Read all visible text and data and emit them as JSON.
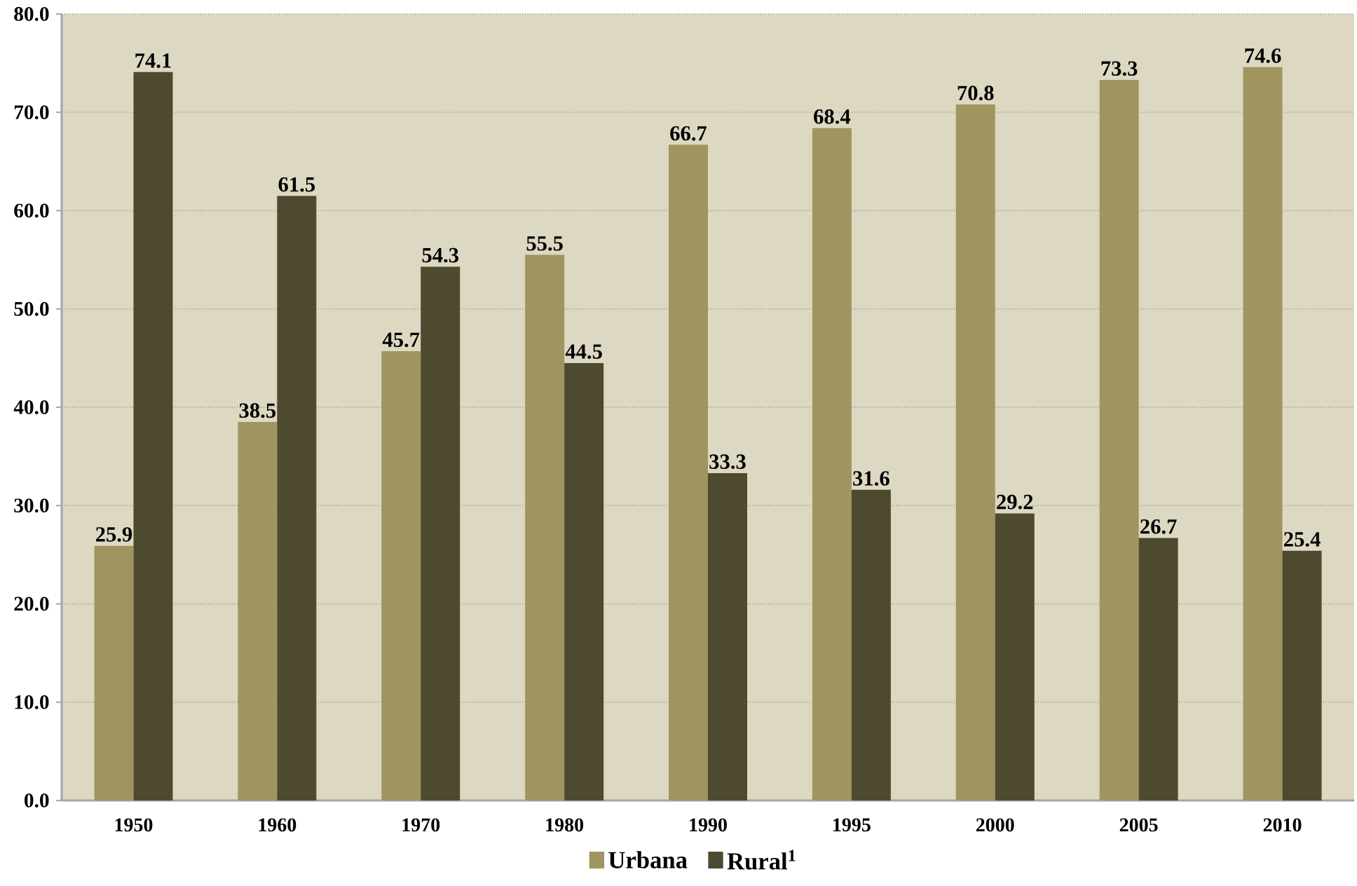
{
  "chart_data": {
    "type": "bar",
    "categories": [
      "1950",
      "1960",
      "1970",
      "1980",
      "1990",
      "1995",
      "2000",
      "2005",
      "2010"
    ],
    "series": [
      {
        "name": "Urbana",
        "color": "#a09560",
        "values": [
          25.9,
          38.5,
          45.7,
          55.5,
          66.7,
          68.4,
          70.8,
          73.3,
          74.6
        ]
      },
      {
        "name": "Rural$^{1}$",
        "color": "#4e4a30",
        "values": [
          74.1,
          61.5,
          54.3,
          44.5,
          33.3,
          31.6,
          29.2,
          26.7,
          25.4
        ]
      }
    ],
    "ylim": [
      0,
      80
    ],
    "yticks": [
      {
        "value": 0,
        "label": "0.0"
      },
      {
        "value": 10,
        "label": "10.0"
      },
      {
        "value": 20,
        "label": "20.0"
      },
      {
        "value": 30,
        "label": "30.0"
      },
      {
        "value": 40,
        "label": "40.0"
      },
      {
        "value": 50,
        "label": "50.0"
      },
      {
        "value": 60,
        "label": "60.0"
      },
      {
        "value": 70,
        "label": "70.0"
      },
      {
        "value": 80,
        "label": "80.0"
      }
    ],
    "grid": "y",
    "legend": "bottom",
    "data_labels": true
  }
}
